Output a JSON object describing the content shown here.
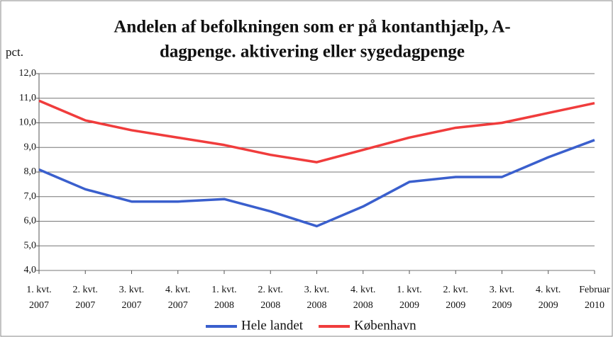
{
  "chart_data": {
    "type": "line",
    "title": [
      "Andelen af befolkningen som er på kontanthjælp, A-",
      "dagpenge. aktivering eller sygedagpenge"
    ],
    "y_label": "pct.",
    "categories": [
      [
        "1. kvt.",
        "2007"
      ],
      [
        "2. kvt.",
        "2007"
      ],
      [
        "3. kvt.",
        "2007"
      ],
      [
        "4. kvt.",
        "2007"
      ],
      [
        "1. kvt.",
        "2008"
      ],
      [
        "2. kvt.",
        "2008"
      ],
      [
        "3. kvt.",
        "2008"
      ],
      [
        "4. kvt.",
        "2008"
      ],
      [
        "1. kvt.",
        "2009"
      ],
      [
        "2. kvt.",
        "2009"
      ],
      [
        "3. kvt.",
        "2009"
      ],
      [
        "4. kvt.",
        "2009"
      ],
      [
        "Februar",
        "2010"
      ]
    ],
    "series": [
      {
        "name": "Hele landet",
        "color": "#3a5fcd",
        "values": [
          8.1,
          7.3,
          6.8,
          6.8,
          6.9,
          6.4,
          5.8,
          6.6,
          7.6,
          7.8,
          7.8,
          8.6,
          9.3
        ]
      },
      {
        "name": "København",
        "color": "#f03c3c",
        "values": [
          10.9,
          10.1,
          9.7,
          9.4,
          9.1,
          8.7,
          8.4,
          8.9,
          9.4,
          9.8,
          10.0,
          10.4,
          10.8
        ]
      }
    ],
    "ylim": [
      4,
      12
    ],
    "yticks": [
      {
        "value": 4,
        "label": "4,0"
      },
      {
        "value": 5,
        "label": "5,0"
      },
      {
        "value": 6,
        "label": "6,0"
      },
      {
        "value": 7,
        "label": "7,0"
      },
      {
        "value": 8,
        "label": "8,0"
      },
      {
        "value": 9,
        "label": "9,0"
      },
      {
        "value": 10,
        "label": "10,0"
      },
      {
        "value": 11,
        "label": "11,0"
      },
      {
        "value": 12,
        "label": "12,0"
      }
    ],
    "grid": true,
    "legend": "bottom"
  }
}
